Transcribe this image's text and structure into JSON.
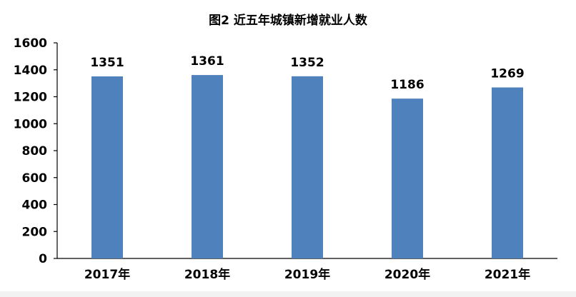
{
  "chart_data": {
    "type": "bar",
    "title": "图2  近五年城镇新增就业人数",
    "categories": [
      "2017年",
      "2018年",
      "2019年",
      "2020年",
      "2021年"
    ],
    "values": [
      1351,
      1361,
      1352,
      1186,
      1269
    ],
    "data_labels": [
      "1351",
      "1361",
      "1352",
      "1186",
      "1269"
    ],
    "xlabel": "",
    "ylabel": "",
    "ylim": [
      0,
      1600
    ],
    "yticks": [
      0,
      200,
      400,
      600,
      800,
      1000,
      1200,
      1400,
      1600
    ],
    "ytick_labels": [
      "0",
      "200",
      "400",
      "600",
      "800",
      "1000",
      "1200",
      "1400",
      "1600"
    ],
    "grid": false,
    "legend": "none",
    "bar_color": "#4f81bd"
  }
}
